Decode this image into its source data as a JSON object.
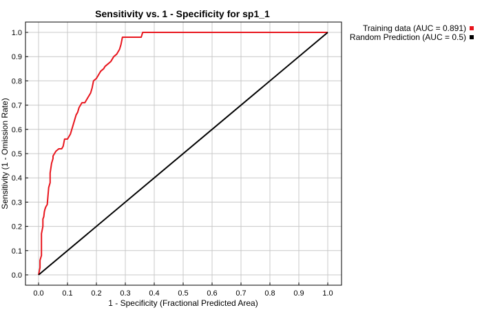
{
  "chart_data": {
    "type": "line",
    "title": "Sensitivity vs. 1 - Specificity for sp1_1",
    "xlabel": "1 - Specificity  (Fractional Predicted Area)",
    "ylabel": "Sensitivity  (1 - Omission Rate)",
    "xlim": [
      0,
      1
    ],
    "ylim": [
      0,
      1
    ],
    "x_ticks": [
      "0.0",
      "0.1",
      "0.2",
      "0.3",
      "0.4",
      "0.5",
      "0.6",
      "0.7",
      "0.8",
      "0.9",
      "1.0"
    ],
    "y_ticks": [
      "0.0",
      "0.1",
      "0.2",
      "0.3",
      "0.4",
      "0.5",
      "0.6",
      "0.7",
      "0.8",
      "0.9",
      "1.0"
    ],
    "grid": true,
    "legend_position": "top-right-outside",
    "series": [
      {
        "name": "Training data (AUC = 0.891)",
        "color": "#e8141c",
        "x": [
          0.0,
          0.005,
          0.005,
          0.01,
          0.01,
          0.015,
          0.015,
          0.018,
          0.02,
          0.022,
          0.025,
          0.03,
          0.035,
          0.04,
          0.04,
          0.045,
          0.05,
          0.05,
          0.06,
          0.07,
          0.08,
          0.085,
          0.09,
          0.1,
          0.11,
          0.115,
          0.12,
          0.125,
          0.13,
          0.135,
          0.14,
          0.15,
          0.16,
          0.17,
          0.18,
          0.185,
          0.19,
          0.2,
          0.21,
          0.215,
          0.225,
          0.23,
          0.24,
          0.25,
          0.26,
          0.27,
          0.28,
          0.285,
          0.29,
          0.3,
          0.32,
          0.355,
          0.36,
          0.5,
          1.0
        ],
        "y": [
          0.0,
          0.03,
          0.06,
          0.08,
          0.17,
          0.2,
          0.23,
          0.24,
          0.26,
          0.27,
          0.28,
          0.29,
          0.36,
          0.38,
          0.42,
          0.46,
          0.48,
          0.49,
          0.51,
          0.52,
          0.52,
          0.53,
          0.56,
          0.56,
          0.58,
          0.6,
          0.62,
          0.64,
          0.66,
          0.67,
          0.69,
          0.71,
          0.71,
          0.73,
          0.75,
          0.77,
          0.8,
          0.81,
          0.83,
          0.84,
          0.85,
          0.86,
          0.87,
          0.88,
          0.9,
          0.91,
          0.93,
          0.95,
          0.98,
          0.98,
          0.98,
          0.98,
          1.0,
          1.0,
          1.0
        ]
      },
      {
        "name": "Random Prediction (AUC = 0.5)",
        "color": "#000000",
        "x": [
          0.0,
          1.0
        ],
        "y": [
          0.0,
          1.0
        ]
      }
    ]
  }
}
